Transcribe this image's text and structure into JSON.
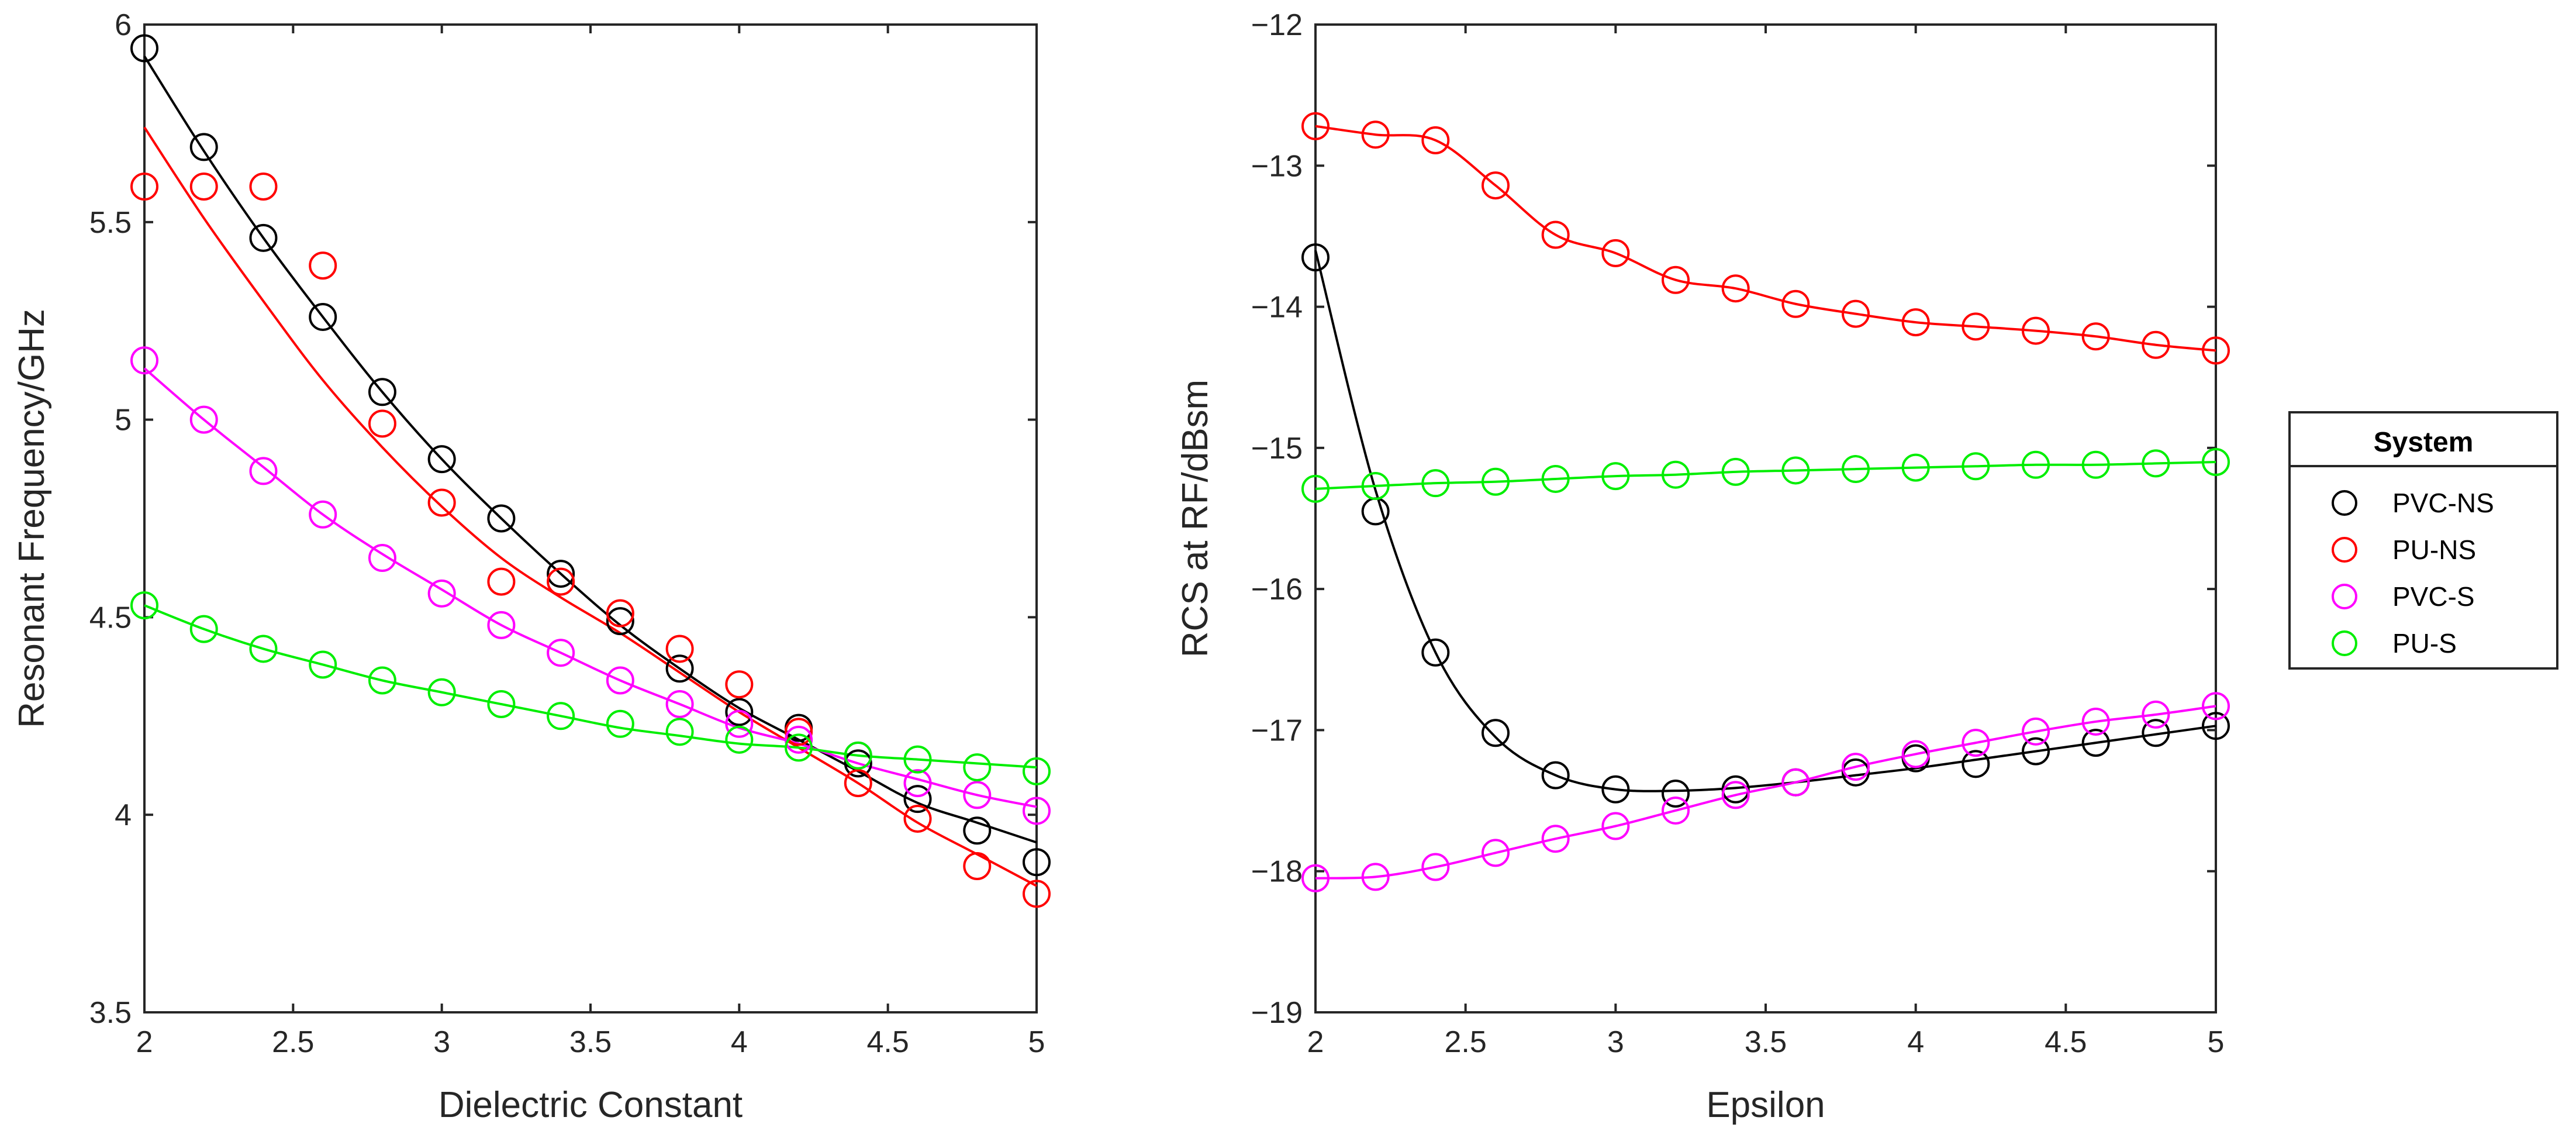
{
  "chart_data": [
    {
      "type": "scatter",
      "xlabel": "Dielectric Constant",
      "ylabel": "Resonant Frequency/GHz",
      "xlim": [
        2,
        5
      ],
      "ylim": [
        3.5,
        6
      ],
      "xticks": [
        2,
        2.5,
        3,
        3.5,
        4,
        4.5,
        5
      ],
      "xtick_labels": [
        "2",
        "2.5",
        "3",
        "3.5",
        "4",
        "4.5",
        "5"
      ],
      "yticks": [
        3.5,
        4,
        4.5,
        5,
        5.5,
        6
      ],
      "ytick_labels": [
        "3.5",
        "4",
        "4.5",
        "5",
        "5.5",
        "6"
      ],
      "x": [
        2,
        2.2,
        2.4,
        2.6,
        2.8,
        3,
        3.2,
        3.4,
        3.6,
        3.8,
        4,
        4.2,
        4.4,
        4.6,
        4.8,
        5
      ],
      "series": [
        {
          "name": "PVC-NS",
          "color": "#000000",
          "values": [
            5.94,
            5.69,
            5.46,
            5.26,
            5.07,
            4.9,
            4.75,
            4.61,
            4.49,
            4.37,
            4.26,
            4.22,
            4.13,
            4.04,
            3.96,
            3.88
          ],
          "fit": [
            5.92,
            5.68,
            5.46,
            5.26,
            5.07,
            4.9,
            4.75,
            4.61,
            4.48,
            4.37,
            4.27,
            4.19,
            4.11,
            4.03,
            3.98,
            3.93
          ]
        },
        {
          "name": "PU-NS",
          "color": "#ff0000",
          "values": [
            5.59,
            5.59,
            5.59,
            5.39,
            4.99,
            4.79,
            4.59,
            4.59,
            4.51,
            4.42,
            4.33,
            4.21,
            4.08,
            3.99,
            3.87,
            3.8
          ],
          "fit": [
            5.74,
            5.51,
            5.3,
            5.1,
            4.93,
            4.78,
            4.65,
            4.55,
            4.46,
            4.36,
            4.26,
            4.17,
            4.08,
            3.98,
            3.9,
            3.82
          ]
        },
        {
          "name": "PVC-S",
          "color": "#ff00ff",
          "values": [
            5.15,
            5.0,
            4.87,
            4.76,
            4.65,
            4.56,
            4.48,
            4.41,
            4.34,
            4.28,
            4.23,
            4.19,
            4.15,
            4.08,
            4.05,
            4.01
          ],
          "fit": [
            5.13,
            5.0,
            4.88,
            4.76,
            4.66,
            4.57,
            4.48,
            4.41,
            4.34,
            4.28,
            4.22,
            4.18,
            4.13,
            4.09,
            4.05,
            4.02
          ]
        },
        {
          "name": "PU-S",
          "color": "#00ee00",
          "values": [
            4.53,
            4.47,
            4.42,
            4.38,
            4.34,
            4.31,
            4.28,
            4.25,
            4.23,
            4.21,
            4.19,
            4.17,
            4.15,
            4.14,
            4.12,
            4.11
          ],
          "fit": [
            4.53,
            4.47,
            4.42,
            4.38,
            4.34,
            4.31,
            4.28,
            4.25,
            4.22,
            4.2,
            4.18,
            4.17,
            4.15,
            4.14,
            4.13,
            4.12
          ]
        }
      ]
    },
    {
      "type": "scatter",
      "xlabel": "Epsilon",
      "ylabel": "RCS at RF/dBsm",
      "xlim": [
        2,
        5
      ],
      "ylim": [
        -19,
        -12
      ],
      "xticks": [
        2,
        2.5,
        3,
        3.5,
        4,
        4.5,
        5
      ],
      "xtick_labels": [
        "2",
        "2.5",
        "3",
        "3.5",
        "4",
        "4.5",
        "5"
      ],
      "yticks": [
        -19,
        -18,
        -17,
        -16,
        -15,
        -14,
        -13,
        -12
      ],
      "ytick_labels": [
        "−19",
        "−18",
        "−17",
        "−16",
        "−15",
        "−14",
        "−13",
        "−12"
      ],
      "x": [
        2,
        2.2,
        2.4,
        2.6,
        2.8,
        3,
        3.2,
        3.4,
        3.6,
        3.8,
        4,
        4.2,
        4.4,
        4.6,
        4.8,
        5
      ],
      "series": [
        {
          "name": "PVC-NS",
          "color": "#000000",
          "values": [
            -13.65,
            -15.45,
            -16.45,
            -17.02,
            -17.32,
            -17.42,
            -17.45,
            -17.42,
            -17.37,
            -17.3,
            -17.2,
            -17.24,
            -17.15,
            -17.09,
            -17.02,
            -16.97
          ],
          "fit": [
            -13.6,
            -15.3,
            -16.45,
            -17.05,
            -17.32,
            -17.42,
            -17.43,
            -17.41,
            -17.37,
            -17.32,
            -17.27,
            -17.21,
            -17.15,
            -17.09,
            -17.03,
            -16.97
          ]
        },
        {
          "name": "PU-NS",
          "color": "#ff0000",
          "values": [
            -12.72,
            -12.78,
            -12.82,
            -13.14,
            -13.49,
            -13.62,
            -13.81,
            -13.87,
            -13.98,
            -14.05,
            -14.11,
            -14.14,
            -14.17,
            -14.21,
            -14.27,
            -14.31
          ]
        },
        {
          "name": "PVC-S",
          "color": "#ff00ff",
          "values": [
            -18.05,
            -18.04,
            -17.97,
            -17.87,
            -17.77,
            -17.68,
            -17.57,
            -17.46,
            -17.37,
            -17.26,
            -17.17,
            -17.09,
            -17.01,
            -16.94,
            -16.89,
            -16.83
          ]
        },
        {
          "name": "PU-S",
          "color": "#00ee00",
          "values": [
            -15.29,
            -15.27,
            -15.25,
            -15.24,
            -15.22,
            -15.2,
            -15.19,
            -15.17,
            -15.16,
            -15.15,
            -15.14,
            -15.13,
            -15.12,
            -15.12,
            -15.11,
            -15.1
          ]
        }
      ],
      "legend": {
        "title": "System",
        "entries": [
          "PVC-NS",
          "PU-NS",
          "PVC-S",
          "PU-S"
        ],
        "placement": "outside-right"
      }
    }
  ]
}
